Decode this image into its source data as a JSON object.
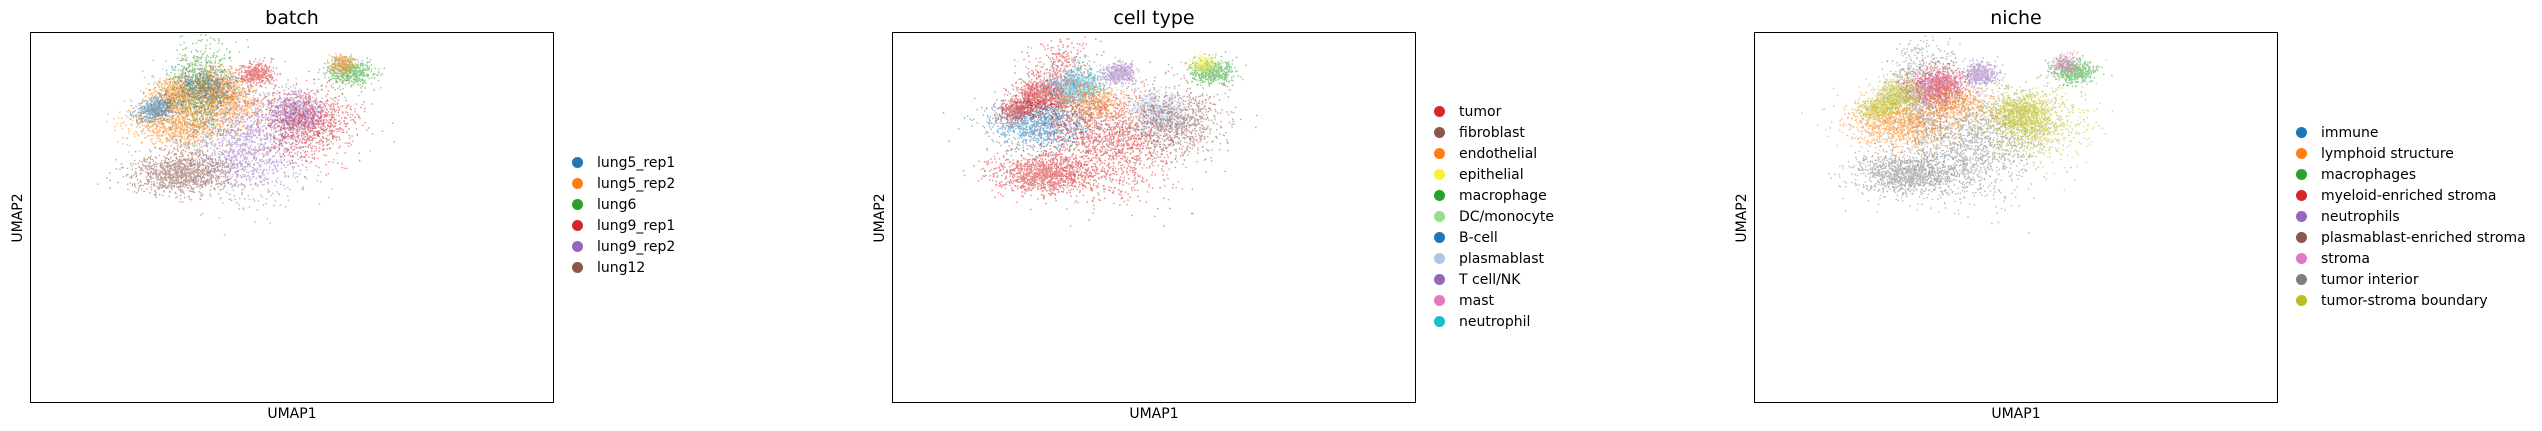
{
  "chart_data": [
    {
      "type": "scatter",
      "title": "batch",
      "xlabel": "UMAP1",
      "ylabel": "UMAP2",
      "grid": false,
      "legend_position": "right",
      "series": [
        {
          "name": "lung5_rep1",
          "color": "#1f77b4"
        },
        {
          "name": "lung5_rep2",
          "color": "#ff7f0e"
        },
        {
          "name": "lung6",
          "color": "#2ca02c"
        },
        {
          "name": "lung9_rep1",
          "color": "#d62728"
        },
        {
          "name": "lung9_rep2",
          "color": "#9467bd"
        },
        {
          "name": "lung12",
          "color": "#8c564b"
        }
      ]
    },
    {
      "type": "scatter",
      "title": "cell type",
      "xlabel": "UMAP1",
      "ylabel": "UMAP2",
      "grid": false,
      "legend_position": "right",
      "series": [
        {
          "name": "tumor",
          "color": "#d62728"
        },
        {
          "name": "fibroblast",
          "color": "#8c564b"
        },
        {
          "name": "endothelial",
          "color": "#ff7f0e"
        },
        {
          "name": "epithelial",
          "color": "#ffee33"
        },
        {
          "name": "macrophage",
          "color": "#2ca02c"
        },
        {
          "name": "DC/monocyte",
          "color": "#98df8a"
        },
        {
          "name": "B-cell",
          "color": "#1f77b4"
        },
        {
          "name": "plasmablast",
          "color": "#aec7e8"
        },
        {
          "name": "T cell/NK",
          "color": "#9467bd"
        },
        {
          "name": "mast",
          "color": "#e377c2"
        },
        {
          "name": "neutrophil",
          "color": "#17becf"
        }
      ]
    },
    {
      "type": "scatter",
      "title": "niche",
      "xlabel": "UMAP1",
      "ylabel": "UMAP2",
      "grid": false,
      "legend_position": "right",
      "series": [
        {
          "name": "immune",
          "color": "#1f77b4"
        },
        {
          "name": "lymphoid structure",
          "color": "#ff7f0e"
        },
        {
          "name": "macrophages",
          "color": "#2ca02c"
        },
        {
          "name": "myeloid-enriched stroma",
          "color": "#d62728"
        },
        {
          "name": "neutrophils",
          "color": "#9467bd"
        },
        {
          "name": "plasmablast-enriched stroma",
          "color": "#8c564b"
        },
        {
          "name": "stroma",
          "color": "#e377c2"
        },
        {
          "name": "tumor interior",
          "color": "#7f7f7f"
        },
        {
          "name": "tumor-stroma boundary",
          "color": "#bcbd22"
        }
      ]
    }
  ]
}
